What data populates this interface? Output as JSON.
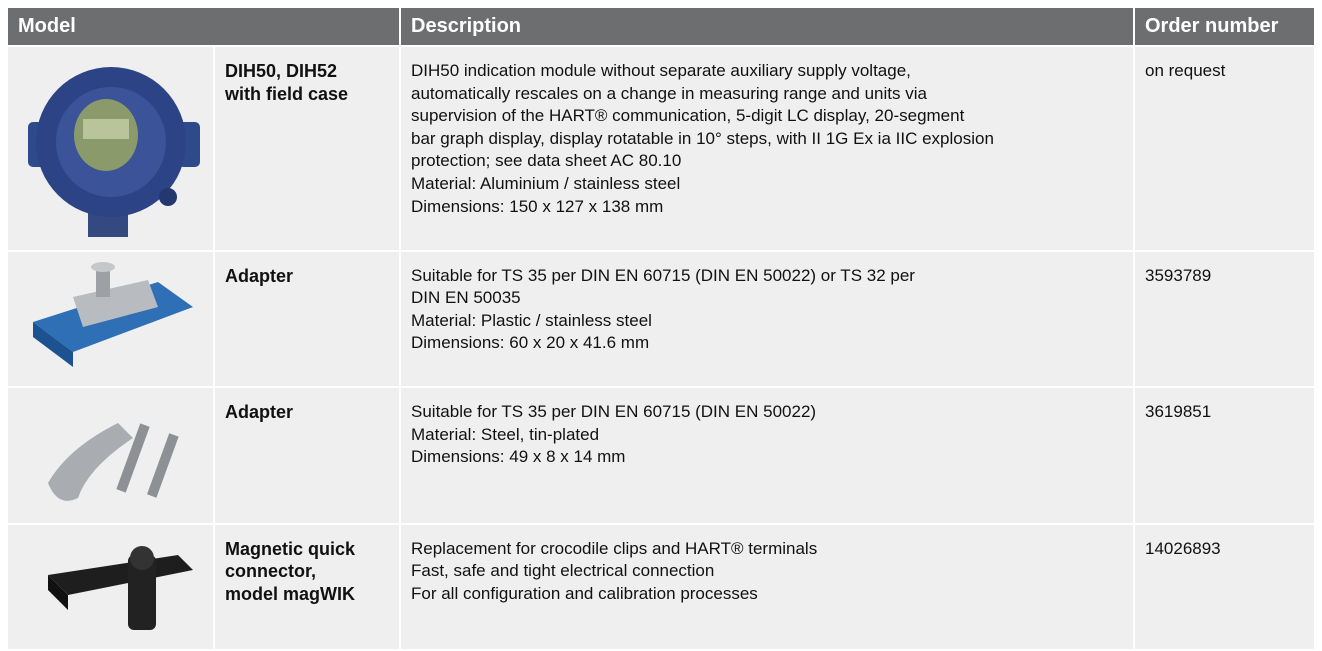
{
  "table": {
    "headers": [
      "Model",
      "Description",
      "Order number"
    ],
    "rows": [
      {
        "model": [
          "DIH50, DIH52",
          "with field case"
        ],
        "description": [
          "DIH50 indication module without separate auxiliary supply voltage,",
          "automatically rescales on a change in measuring range and units via",
          "supervision of the HART® communication, 5-digit LC display, 20-segment",
          "bar graph display, display rotatable in 10° steps, with II 1G Ex ia IIC explosion",
          "protection; see data sheet AC 80.10",
          "Material: Aluminium / stainless steel",
          "Dimensions: 150 x 127 x 138 mm"
        ],
        "order": "on request"
      },
      {
        "model": [
          "Adapter"
        ],
        "description": [
          "Suitable for TS 35 per DIN EN 60715 (DIN EN 50022) or TS 32 per",
          "DIN EN 50035",
          "Material: Plastic / stainless steel",
          "Dimensions: 60 x 20 x 41.6 mm"
        ],
        "order": "3593789"
      },
      {
        "model": [
          "Adapter"
        ],
        "description": [
          "Suitable for TS 35 per DIN EN 60715 (DIN EN 50022)",
          "Material: Steel, tin-plated",
          "Dimensions: 49 x 8 x 14 mm"
        ],
        "order": "3619851"
      },
      {
        "model": [
          "Magnetic quick",
          "connector,",
          "model magWIK"
        ],
        "description": [
          "Replacement for crocodile clips and HART® terminals",
          "Fast, safe and tight electrical connection",
          "For all configuration and calibration processes"
        ],
        "order": "14026893"
      }
    ]
  }
}
